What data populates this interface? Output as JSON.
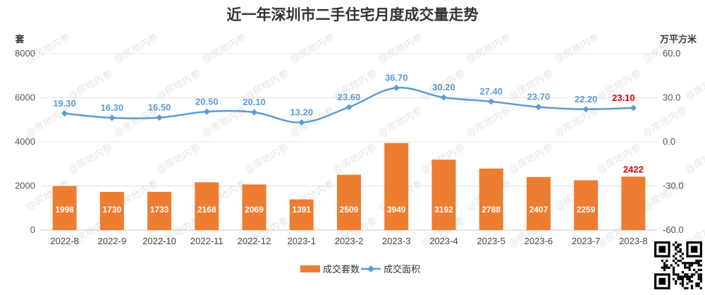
{
  "chart_data": {
    "type": "bar",
    "title": "近一年深圳市二手住宅月度成交量走势",
    "left_axis_unit": "套",
    "right_axis_unit": "万平方米",
    "categories": [
      "2022-8",
      "2022-9",
      "2022-10",
      "2022-11",
      "2022-12",
      "2023-1",
      "2023-2",
      "2023-3",
      "2023-4",
      "2023-5",
      "2023-6",
      "2023-7",
      "2023-8"
    ],
    "left_ticks": [
      "0",
      "2000",
      "4000",
      "6000",
      "8000"
    ],
    "right_ticks": [
      "-60.0",
      "-30.0",
      "0.0",
      "30.0",
      "60.0"
    ],
    "ylim_left": [
      0,
      8000
    ],
    "ylim_right": [
      -60,
      60
    ],
    "grid": true,
    "legend_position": "bottom",
    "series": [
      {
        "name": "成交套数",
        "type": "bar",
        "axis": "left",
        "color": "#ED7D31",
        "values": [
          1998,
          1730,
          1733,
          2168,
          2069,
          1391,
          2509,
          3949,
          3192,
          2788,
          2407,
          2259,
          2422
        ],
        "labels": [
          "1998",
          "1730",
          "1733",
          "2168",
          "2069",
          "1391",
          "2509",
          "3949",
          "3192",
          "2788",
          "2407",
          "2259",
          "2422"
        ]
      },
      {
        "name": "成交面积",
        "type": "line",
        "axis": "right",
        "color": "#5B9BD5",
        "values": [
          19.3,
          16.3,
          16.5,
          20.5,
          20.1,
          13.2,
          23.6,
          36.7,
          30.2,
          27.4,
          23.7,
          22.2,
          23.1
        ],
        "labels": [
          "19.30",
          "16.30",
          "16.50",
          "20.50",
          "20.10",
          "13.20",
          "23.60",
          "36.70",
          "30.20",
          "27.40",
          "23.70",
          "22.20",
          "23.10"
        ]
      }
    ],
    "highlight_color": "#E00000",
    "watermark": "@房地内参"
  }
}
